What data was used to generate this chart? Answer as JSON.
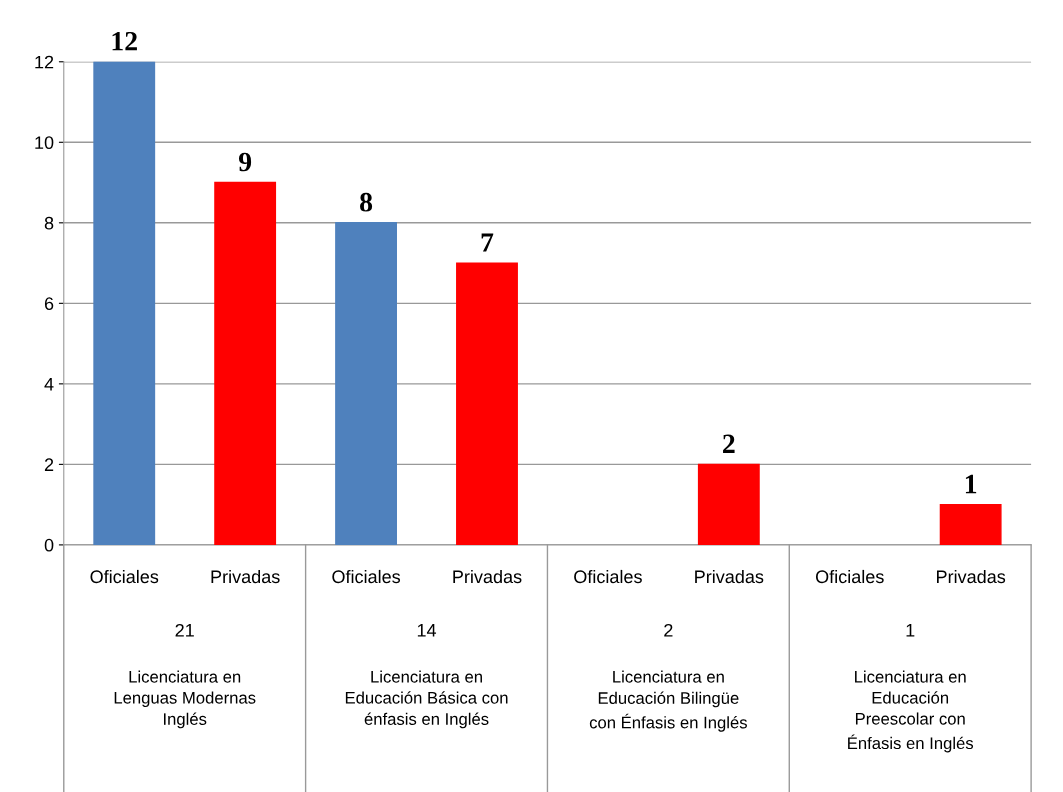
{
  "chart_data": {
    "type": "bar",
    "categories": [
      "Oficiales",
      "Privadas",
      "Oficiales",
      "Privadas",
      "Oficiales",
      "Privadas",
      "Oficiales",
      "Privadas"
    ],
    "values": [
      12,
      9,
      8,
      7,
      null,
      2,
      null,
      1
    ],
    "colors": [
      "#4f81bd",
      "#ff0000",
      "#4f81bd",
      "#ff0000",
      "#4f81bd",
      "#ff0000",
      "#4f81bd",
      "#ff0000"
    ],
    "data_labels": true,
    "ylim": [
      0,
      12
    ],
    "yticks": [
      0,
      2,
      4,
      6,
      8,
      10,
      12
    ],
    "grid": "y",
    "legend": false,
    "annotations": [
      "21",
      "Licenciatura en\nLenguas Modernas\nInglés",
      "14",
      "Licenciatura en\nEducación Básica con\nénfasis en Inglés",
      "2",
      "Licenciatura en\nEducación Bilingüe\ncon Énfasis en Inglés",
      "1",
      "Licenciatura en\nEducación\nPreescolar con\nÉnfasis en Inglés"
    ]
  }
}
